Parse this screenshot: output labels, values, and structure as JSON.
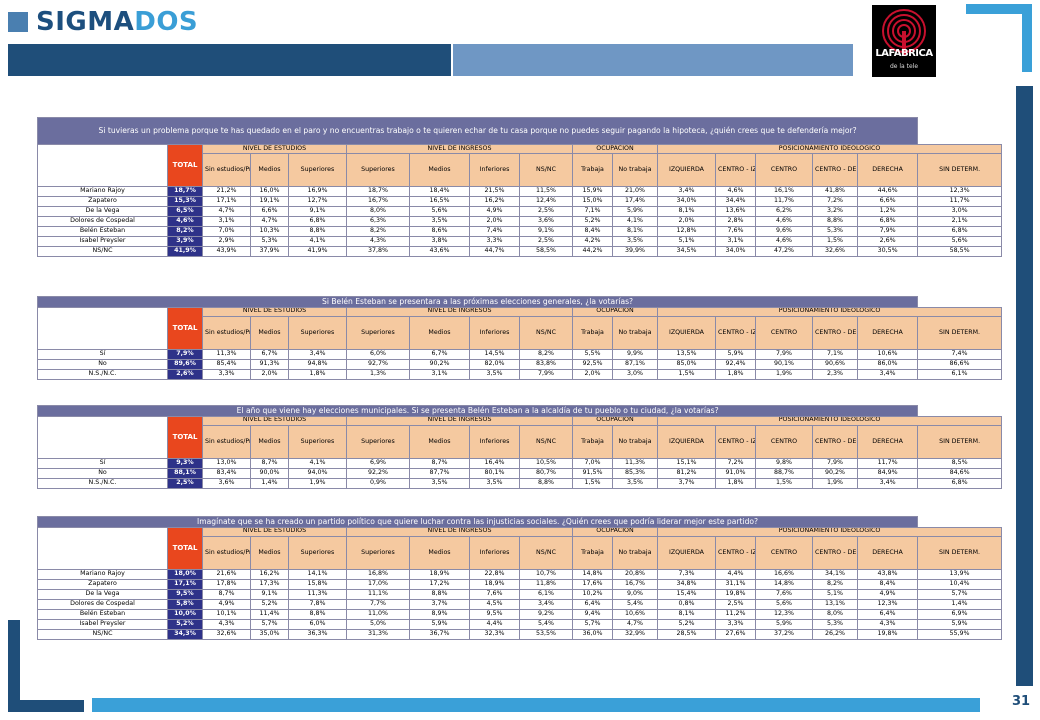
{
  "header": {
    "logo_left": "SIGMA",
    "logo_right": "DOS",
    "partner_logo": "LAFABRICA",
    "partner_sub": "de la tele"
  },
  "page_number": "31",
  "columns": {
    "total": "TOTAL",
    "groups": [
      "NIVEL DE ESTUDIOS",
      "NIVEL DE INGRESOS",
      "OCUPACIÓN",
      "POSICIONAMIENTO IDEOLÓGICO"
    ],
    "subs": [
      "Sin estudios/Primarios",
      "Medios",
      "Superiores",
      "Superiores",
      "Medios",
      "Inferiores",
      "NS/NC",
      "Trabaja",
      "No trabaja",
      "IZQUIERDA",
      "CENTRO - IZQUIERDA",
      "CENTRO",
      "CENTRO - DERECHA",
      "DERECHA",
      "SIN DETERM."
    ]
  },
  "tables": [
    {
      "title": "Si tuvieras un problema porque te has quedado en el paro y no encuentras trabajo o te quieren echar de tu casa porque no puedes seguir pagando la hipoteca, ¿quién crees que te defendería mejor?",
      "rows": [
        {
          "label": "Mariano Rajoy",
          "total": "18,7%",
          "values": [
            "21,2%",
            "16,0%",
            "16,9%",
            "18,7%",
            "18,4%",
            "21,5%",
            "11,5%",
            "15,9%",
            "21,0%",
            "3,4%",
            "4,6%",
            "16,1%",
            "41,8%",
            "44,6%",
            "12,3%"
          ]
        },
        {
          "label": "Zapatero",
          "total": "15,3%",
          "values": [
            "17,1%",
            "19,1%",
            "12,7%",
            "16,7%",
            "16,5%",
            "16,2%",
            "12,4%",
            "15,0%",
            "17,4%",
            "34,0%",
            "34,4%",
            "11,7%",
            "7,2%",
            "6,6%",
            "11,7%"
          ]
        },
        {
          "label": "De la Vega",
          "total": "6,5%",
          "values": [
            "4,7%",
            "6,6%",
            "9,1%",
            "8,0%",
            "5,6%",
            "4,9%",
            "2,5%",
            "7,1%",
            "5,9%",
            "8,1%",
            "13,6%",
            "6,2%",
            "3,2%",
            "1,2%",
            "3,0%"
          ]
        },
        {
          "label": "Dolores de Cospedal",
          "total": "4,6%",
          "values": [
            "3,1%",
            "4,7%",
            "6,8%",
            "6,3%",
            "3,5%",
            "2,0%",
            "3,6%",
            "5,2%",
            "4,1%",
            "2,0%",
            "2,8%",
            "4,6%",
            "8,8%",
            "6,8%",
            "2,1%"
          ]
        },
        {
          "label": "Belén Esteban",
          "total": "8,2%",
          "values": [
            "7,0%",
            "10,3%",
            "8,8%",
            "8,2%",
            "8,6%",
            "7,4%",
            "9,1%",
            "8,4%",
            "8,1%",
            "12,8%",
            "7,6%",
            "9,6%",
            "5,3%",
            "7,9%",
            "6,8%"
          ]
        },
        {
          "label": "Isabel Preysler",
          "total": "3,9%",
          "values": [
            "2,9%",
            "5,3%",
            "4,1%",
            "4,3%",
            "3,8%",
            "3,3%",
            "2,5%",
            "4,2%",
            "3,5%",
            "5,1%",
            "3,1%",
            "4,6%",
            "1,5%",
            "2,6%",
            "5,6%"
          ]
        },
        {
          "label": "NS/NC",
          "total": "41,9%",
          "values": [
            "43,9%",
            "37,9%",
            "41,9%",
            "37,8%",
            "43,6%",
            "44,7%",
            "58,5%",
            "44,2%",
            "39,9%",
            "34,5%",
            "34,0%",
            "47,2%",
            "32,6%",
            "30,5%",
            "58,5%"
          ]
        }
      ]
    },
    {
      "title": "Si Belén Esteban se presentara a las próximas elecciones generales, ¿la votarías?",
      "rows": [
        {
          "label": "Sí",
          "total": "7,9%",
          "values": [
            "11,3%",
            "6,7%",
            "3,4%",
            "6,0%",
            "6,7%",
            "14,5%",
            "8,2%",
            "5,5%",
            "9,9%",
            "13,5%",
            "5,9%",
            "7,9%",
            "7,1%",
            "10,6%",
            "7,4%"
          ]
        },
        {
          "label": "No",
          "total": "89,6%",
          "values": [
            "85,4%",
            "91,3%",
            "94,8%",
            "92,7%",
            "90,2%",
            "82,0%",
            "83,8%",
            "92,5%",
            "87,1%",
            "85,0%",
            "92,4%",
            "90,1%",
            "90,6%",
            "86,0%",
            "86,6%"
          ]
        },
        {
          "label": "N.S./N.C.",
          "total": "2,6%",
          "values": [
            "3,3%",
            "2,0%",
            "1,8%",
            "1,3%",
            "3,1%",
            "3,5%",
            "7,9%",
            "2,0%",
            "3,0%",
            "1,5%",
            "1,8%",
            "1,9%",
            "2,3%",
            "3,4%",
            "6,1%"
          ]
        }
      ]
    },
    {
      "title": "El año que viene hay elecciones municipales. Si se presenta Belén Esteban a la alcaldía de tu pueblo o tu ciudad, ¿la votarías?",
      "rows": [
        {
          "label": "Sí",
          "total": "9,3%",
          "values": [
            "13,0%",
            "8,7%",
            "4,1%",
            "6,9%",
            "8,7%",
            "16,4%",
            "10,5%",
            "7,0%",
            "11,3%",
            "15,1%",
            "7,2%",
            "9,8%",
            "7,9%",
            "11,7%",
            "8,5%"
          ]
        },
        {
          "label": "No",
          "total": "88,1%",
          "values": [
            "83,4%",
            "90,0%",
            "94,0%",
            "92,2%",
            "87,7%",
            "80,1%",
            "80,7%",
            "91,5%",
            "85,3%",
            "81,2%",
            "91,0%",
            "88,7%",
            "90,2%",
            "84,9%",
            "84,6%"
          ]
        },
        {
          "label": "N.S./N.C.",
          "total": "2,5%",
          "values": [
            "3,6%",
            "1,4%",
            "1,9%",
            "0,9%",
            "3,5%",
            "3,5%",
            "8,8%",
            "1,5%",
            "3,5%",
            "3,7%",
            "1,8%",
            "1,5%",
            "1,9%",
            "3,4%",
            "6,8%"
          ]
        }
      ]
    },
    {
      "title": "Imagínate que se ha creado un partido político que quiere luchar contra las injusticias sociales. ¿Quién crees que podría liderar mejor este partido?",
      "rows": [
        {
          "label": "Mariano Rajoy",
          "total": "18,0%",
          "values": [
            "21,6%",
            "16,2%",
            "14,1%",
            "16,8%",
            "18,9%",
            "22,8%",
            "10,7%",
            "14,8%",
            "20,8%",
            "7,3%",
            "4,4%",
            "16,6%",
            "34,1%",
            "43,8%",
            "13,9%"
          ]
        },
        {
          "label": "Zapatero",
          "total": "17,1%",
          "values": [
            "17,8%",
            "17,3%",
            "15,8%",
            "17,0%",
            "17,2%",
            "18,9%",
            "11,8%",
            "17,6%",
            "16,7%",
            "34,8%",
            "31,1%",
            "14,8%",
            "8,2%",
            "8,4%",
            "10,4%"
          ]
        },
        {
          "label": "De la Vega",
          "total": "9,5%",
          "values": [
            "8,7%",
            "9,1%",
            "11,3%",
            "11,1%",
            "8,8%",
            "7,6%",
            "6,1%",
            "10,2%",
            "9,0%",
            "15,4%",
            "19,8%",
            "7,6%",
            "5,1%",
            "4,9%",
            "5,7%"
          ]
        },
        {
          "label": "Dolores de Cospedal",
          "total": "5,8%",
          "values": [
            "4,9%",
            "5,2%",
            "7,8%",
            "7,7%",
            "3,7%",
            "4,5%",
            "3,4%",
            "6,4%",
            "5,4%",
            "0,8%",
            "2,5%",
            "5,6%",
            "13,1%",
            "12,3%",
            "1,4%"
          ]
        },
        {
          "label": "Belén Esteban",
          "total": "10,0%",
          "values": [
            "10,1%",
            "11,4%",
            "8,8%",
            "11,0%",
            "8,9%",
            "9,5%",
            "9,2%",
            "9,4%",
            "10,6%",
            "8,1%",
            "11,2%",
            "12,3%",
            "8,0%",
            "6,4%",
            "6,9%"
          ]
        },
        {
          "label": "Isabel Preysler",
          "total": "5,2%",
          "values": [
            "4,3%",
            "5,7%",
            "6,0%",
            "5,0%",
            "5,9%",
            "4,4%",
            "5,4%",
            "5,7%",
            "4,7%",
            "5,2%",
            "3,3%",
            "5,9%",
            "5,3%",
            "4,3%",
            "5,9%"
          ]
        },
        {
          "label": "NS/NC",
          "total": "34,3%",
          "values": [
            "32,6%",
            "35,0%",
            "36,3%",
            "31,3%",
            "36,7%",
            "32,3%",
            "53,5%",
            "36,0%",
            "32,9%",
            "28,5%",
            "27,6%",
            "37,2%",
            "26,2%",
            "19,8%",
            "55,9%"
          ]
        }
      ]
    }
  ]
}
